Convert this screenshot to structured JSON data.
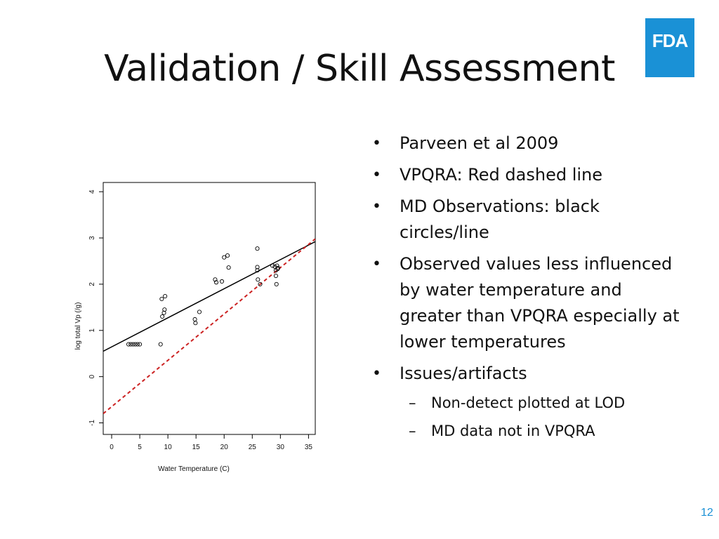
{
  "slide": {
    "title": "Validation / Skill Assessment",
    "logo_text": "FDA",
    "page_number": "12",
    "brand_color": "#1a91d6"
  },
  "bullets": [
    {
      "text": "Parveen et al 2009"
    },
    {
      "text": "VPQRA: Red dashed line"
    },
    {
      "text": "MD Observations: black circles/line"
    },
    {
      "text": "Observed values less influenced by water temperature and greater than VPQRA especially at lower temperatures"
    },
    {
      "text": "Issues/artifacts",
      "sub": [
        "Non-detect plotted at LOD",
        "MD data not in VPQRA"
      ]
    }
  ],
  "chart_data": {
    "type": "scatter",
    "xlabel": "Water Temperature (C)",
    "ylabel": "log total Vp (/g)",
    "xlim": [
      -1.5,
      36.2
    ],
    "ylim": [
      -1.25,
      4.2
    ],
    "xticks": [
      0,
      5,
      10,
      15,
      20,
      25,
      30,
      35
    ],
    "yticks": [
      -1,
      0,
      1,
      2,
      3,
      4
    ],
    "series": [
      {
        "kind": "points",
        "marker": "open-circle",
        "color": "#000000",
        "points": [
          [
            3.0,
            0.7
          ],
          [
            3.4,
            0.7
          ],
          [
            3.8,
            0.7
          ],
          [
            4.2,
            0.7
          ],
          [
            4.6,
            0.7
          ],
          [
            5.0,
            0.7
          ],
          [
            8.7,
            0.7
          ],
          [
            8.9,
            1.68
          ],
          [
            9.0,
            1.3
          ],
          [
            9.3,
            1.38
          ],
          [
            9.4,
            1.45
          ],
          [
            9.5,
            1.74
          ],
          [
            14.8,
            1.24
          ],
          [
            14.9,
            1.16
          ],
          [
            15.6,
            1.4
          ],
          [
            18.4,
            2.1
          ],
          [
            18.6,
            2.04
          ],
          [
            19.6,
            2.06
          ],
          [
            20.0,
            2.58
          ],
          [
            20.6,
            2.62
          ],
          [
            20.8,
            2.36
          ],
          [
            25.9,
            2.77
          ],
          [
            25.9,
            2.37
          ],
          [
            25.9,
            2.3
          ],
          [
            26.0,
            2.1
          ],
          [
            26.4,
            2.0
          ],
          [
            28.6,
            2.4
          ],
          [
            29.0,
            2.38
          ],
          [
            29.2,
            2.3
          ],
          [
            29.2,
            2.18
          ],
          [
            29.3,
            2.0
          ],
          [
            29.4,
            2.4
          ],
          [
            29.5,
            2.33
          ],
          [
            29.6,
            2.35
          ]
        ]
      },
      {
        "kind": "line",
        "style": "solid",
        "color": "#000000",
        "x": [
          -1.5,
          36.2
        ],
        "y": [
          0.55,
          2.92
        ]
      },
      {
        "kind": "line",
        "style": "dashed",
        "color": "#cc2222",
        "x": [
          -1.5,
          36.2
        ],
        "y": [
          -0.8,
          2.98
        ]
      }
    ]
  }
}
